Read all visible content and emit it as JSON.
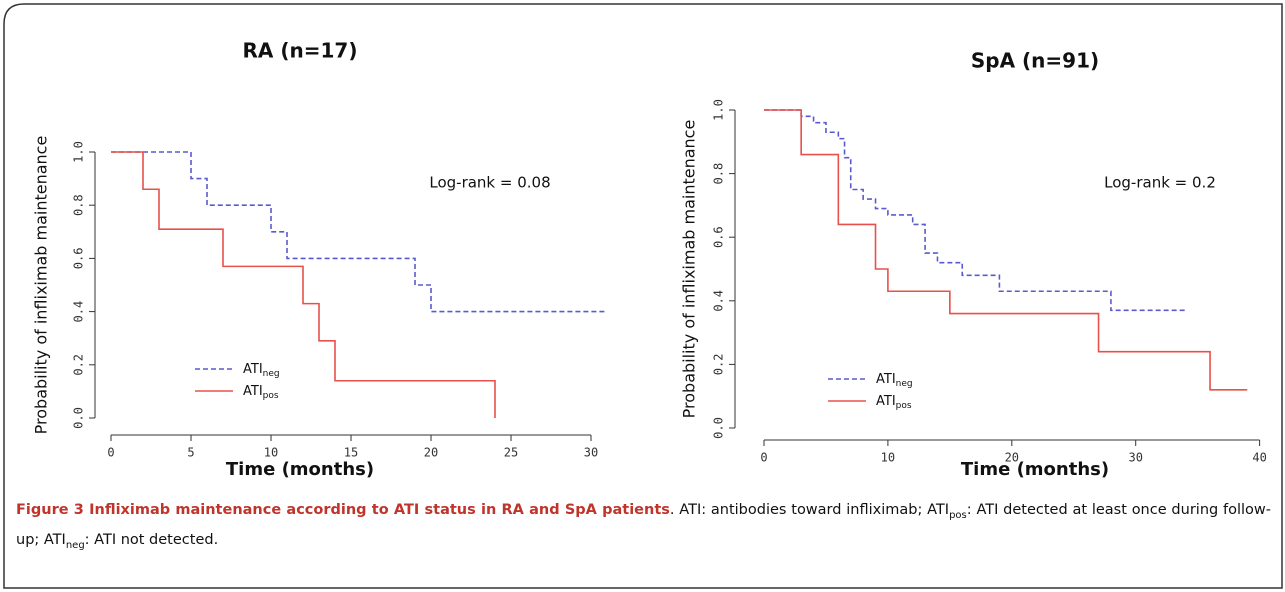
{
  "chart_data": [
    {
      "type": "line",
      "step": true,
      "title": "RA (n=17)",
      "x_label": "Time (months)",
      "y_label": "Probability of infliximab maintenance",
      "annotation": "Log-rank = 0.08",
      "xlim": [
        0,
        31
      ],
      "xticks": [
        0,
        5,
        10,
        15,
        20,
        25,
        30
      ],
      "ylim": [
        0,
        1
      ],
      "yticks": [
        {
          "value": 0,
          "label": "0.0"
        },
        0.2,
        0.4,
        0.6,
        0.8,
        {
          "value": 1,
          "label": "1.0"
        }
      ],
      "series": [
        {
          "name": "ATI",
          "subscript": "neg",
          "color": "#5a5ad0",
          "dashed": true,
          "x": [
            0,
            5,
            6,
            10,
            11,
            19,
            20,
            31
          ],
          "values": [
            1,
            0.9,
            0.8,
            0.7,
            0.6,
            0.5,
            0.4,
            0.4
          ]
        },
        {
          "name": "ATI",
          "subscript": "pos",
          "color": "#e8504a",
          "dashed": false,
          "x": [
            0,
            2,
            3,
            7,
            12,
            13,
            14,
            24
          ],
          "values": [
            1,
            0.86,
            0.71,
            0.57,
            0.43,
            0.29,
            0.14,
            0
          ]
        }
      ]
    },
    {
      "type": "line",
      "step": true,
      "title": "SpA (n=91)",
      "x_label": "Time (months)",
      "y_label": "Probability of infliximab maintenance",
      "annotation": "Log-rank = 0.2",
      "xlim": [
        0,
        41
      ],
      "xticks": [
        0,
        10,
        20,
        30,
        40
      ],
      "ylim": [
        0,
        1
      ],
      "yticks": [
        {
          "value": 0,
          "label": "0.0"
        },
        0.2,
        0.4,
        0.6,
        0.8,
        {
          "value": 1,
          "label": "1.0"
        }
      ],
      "series": [
        {
          "name": "ATI",
          "subscript": "neg",
          "color": "#5a5ad0",
          "dashed": true,
          "x": [
            0,
            3,
            4,
            5,
            6,
            6.5,
            7,
            8,
            9,
            10,
            12,
            13,
            14,
            16,
            19,
            28,
            34
          ],
          "values": [
            1,
            0.98,
            0.96,
            0.93,
            0.91,
            0.85,
            0.75,
            0.72,
            0.69,
            0.67,
            0.64,
            0.55,
            0.52,
            0.48,
            0.43,
            0.37,
            0.37
          ]
        },
        {
          "name": "ATI",
          "subscript": "pos",
          "color": "#e8504a",
          "dashed": false,
          "x": [
            0,
            3,
            6,
            9,
            10,
            15,
            27,
            36,
            39
          ],
          "values": [
            1,
            0.86,
            0.64,
            0.5,
            0.43,
            0.36,
            0.24,
            0.12,
            0.12
          ]
        }
      ]
    }
  ],
  "caption": [
    {
      "text": "Figure 3 Infliximab maintenance according to ATI status in RA and SpA patients",
      "style": "bold"
    },
    {
      "text": ". ATI: antibodies toward infliximab; ATI"
    },
    {
      "text": "pos",
      "style": "sub"
    },
    {
      "text": ": ATI detected at least once during follow-up; ATI"
    },
    {
      "text": "neg",
      "style": "sub"
    },
    {
      "text": ": ATI not detected."
    }
  ]
}
